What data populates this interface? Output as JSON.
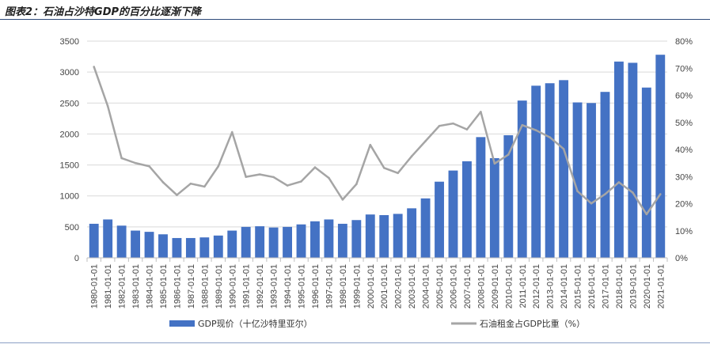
{
  "figure": {
    "title": "图表2：石油占沙特GDP的百分比逐渐下降"
  },
  "chart_data": {
    "type": "bar",
    "title": "图表2：石油占沙特GDP的百分比逐渐下降",
    "categories": [
      "1980-01-01",
      "1981-01-01",
      "1982-01-01",
      "1983-01-01",
      "1984-01-01",
      "1985-01-01",
      "1986-01-01",
      "1987-01-01",
      "1988-01-01",
      "1989-01-01",
      "1990-01-01",
      "1991-01-01",
      "1992-01-01",
      "1993-01-01",
      "1994-01-01",
      "1995-01-01",
      "1996-01-01",
      "1997-01-01",
      "1998-01-01",
      "1999-01-01",
      "2000-01-01",
      "2001-01-01",
      "2002-01-01",
      "2003-01-01",
      "2004-01-01",
      "2005-01-01",
      "2006-01-01",
      "2007-01-01",
      "2008-01-01",
      "2009-01-01",
      "2010-01-01",
      "2011-01-01",
      "2012-01-01",
      "2013-01-01",
      "2014-01-01",
      "2015-01-01",
      "2016-01-01",
      "2017-01-01",
      "2018-01-01",
      "2019-01-01",
      "2020-01-01",
      "2021-01-01"
    ],
    "series": [
      {
        "name": "GDP现价（十亿沙特里亚尔）",
        "type": "bar",
        "axis": "left",
        "color": "#4472c4",
        "values": [
          550,
          620,
          520,
          440,
          420,
          380,
          320,
          320,
          330,
          360,
          440,
          500,
          510,
          490,
          500,
          540,
          590,
          620,
          550,
          610,
          700,
          690,
          710,
          800,
          960,
          1230,
          1410,
          1560,
          1950,
          1610,
          1980,
          2540,
          2780,
          2820,
          2870,
          2510,
          2500,
          2680,
          3170,
          3150,
          2750,
          3280
        ]
      },
      {
        "name": "石油租金占GDP比重（%）",
        "type": "line",
        "axis": "right",
        "color": "#a5a5a5",
        "values": [
          70.5,
          56,
          36.8,
          35,
          33.8,
          27.9,
          23.2,
          27.4,
          26.3,
          33.8,
          46.4,
          29.9,
          30.8,
          29.8,
          26.7,
          28.2,
          33.4,
          29.5,
          21.5,
          27.2,
          41.7,
          33.2,
          31.3,
          37.5,
          43.1,
          48.7,
          49.6,
          47.4,
          53.9,
          34.8,
          38.1,
          49.0,
          47.1,
          44.5,
          40.2,
          24.6,
          20.1,
          23.5,
          27.9,
          24.1,
          16.1,
          23.5
        ]
      }
    ],
    "left_axis": {
      "ylim": [
        0,
        3500
      ],
      "ticks": [
        0,
        500,
        1000,
        1500,
        2000,
        2500,
        3000,
        3500
      ]
    },
    "right_axis": {
      "ylim": [
        0,
        80
      ],
      "ticks": [
        "0%",
        "10%",
        "20%",
        "30%",
        "40%",
        "50%",
        "60%",
        "70%",
        "80%"
      ]
    },
    "xlabel": "",
    "ylabel": "",
    "legend": "bottom"
  }
}
